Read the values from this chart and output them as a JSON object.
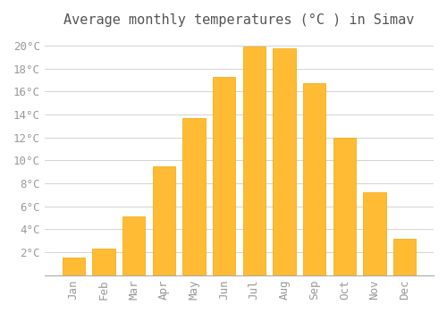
{
  "title": "Average monthly temperatures (°C ) in Simav",
  "months": [
    "Jan",
    "Feb",
    "Mar",
    "Apr",
    "May",
    "Jun",
    "Jul",
    "Aug",
    "Sep",
    "Oct",
    "Nov",
    "Dec"
  ],
  "temperatures": [
    1.5,
    2.3,
    5.1,
    9.5,
    13.7,
    17.3,
    19.9,
    19.8,
    16.7,
    12.0,
    7.2,
    3.2
  ],
  "bar_color": "#FFBB33",
  "bar_edge_color": "#F0A800",
  "background_color": "#FFFFFF",
  "grid_color": "#CCCCCC",
  "title_fontsize": 11,
  "tick_fontsize": 9,
  "ylim": [
    0,
    21
  ],
  "yticks": [
    2,
    4,
    6,
    8,
    10,
    12,
    14,
    16,
    18,
    20
  ],
  "title_color": "#555555",
  "tick_color": "#999999"
}
